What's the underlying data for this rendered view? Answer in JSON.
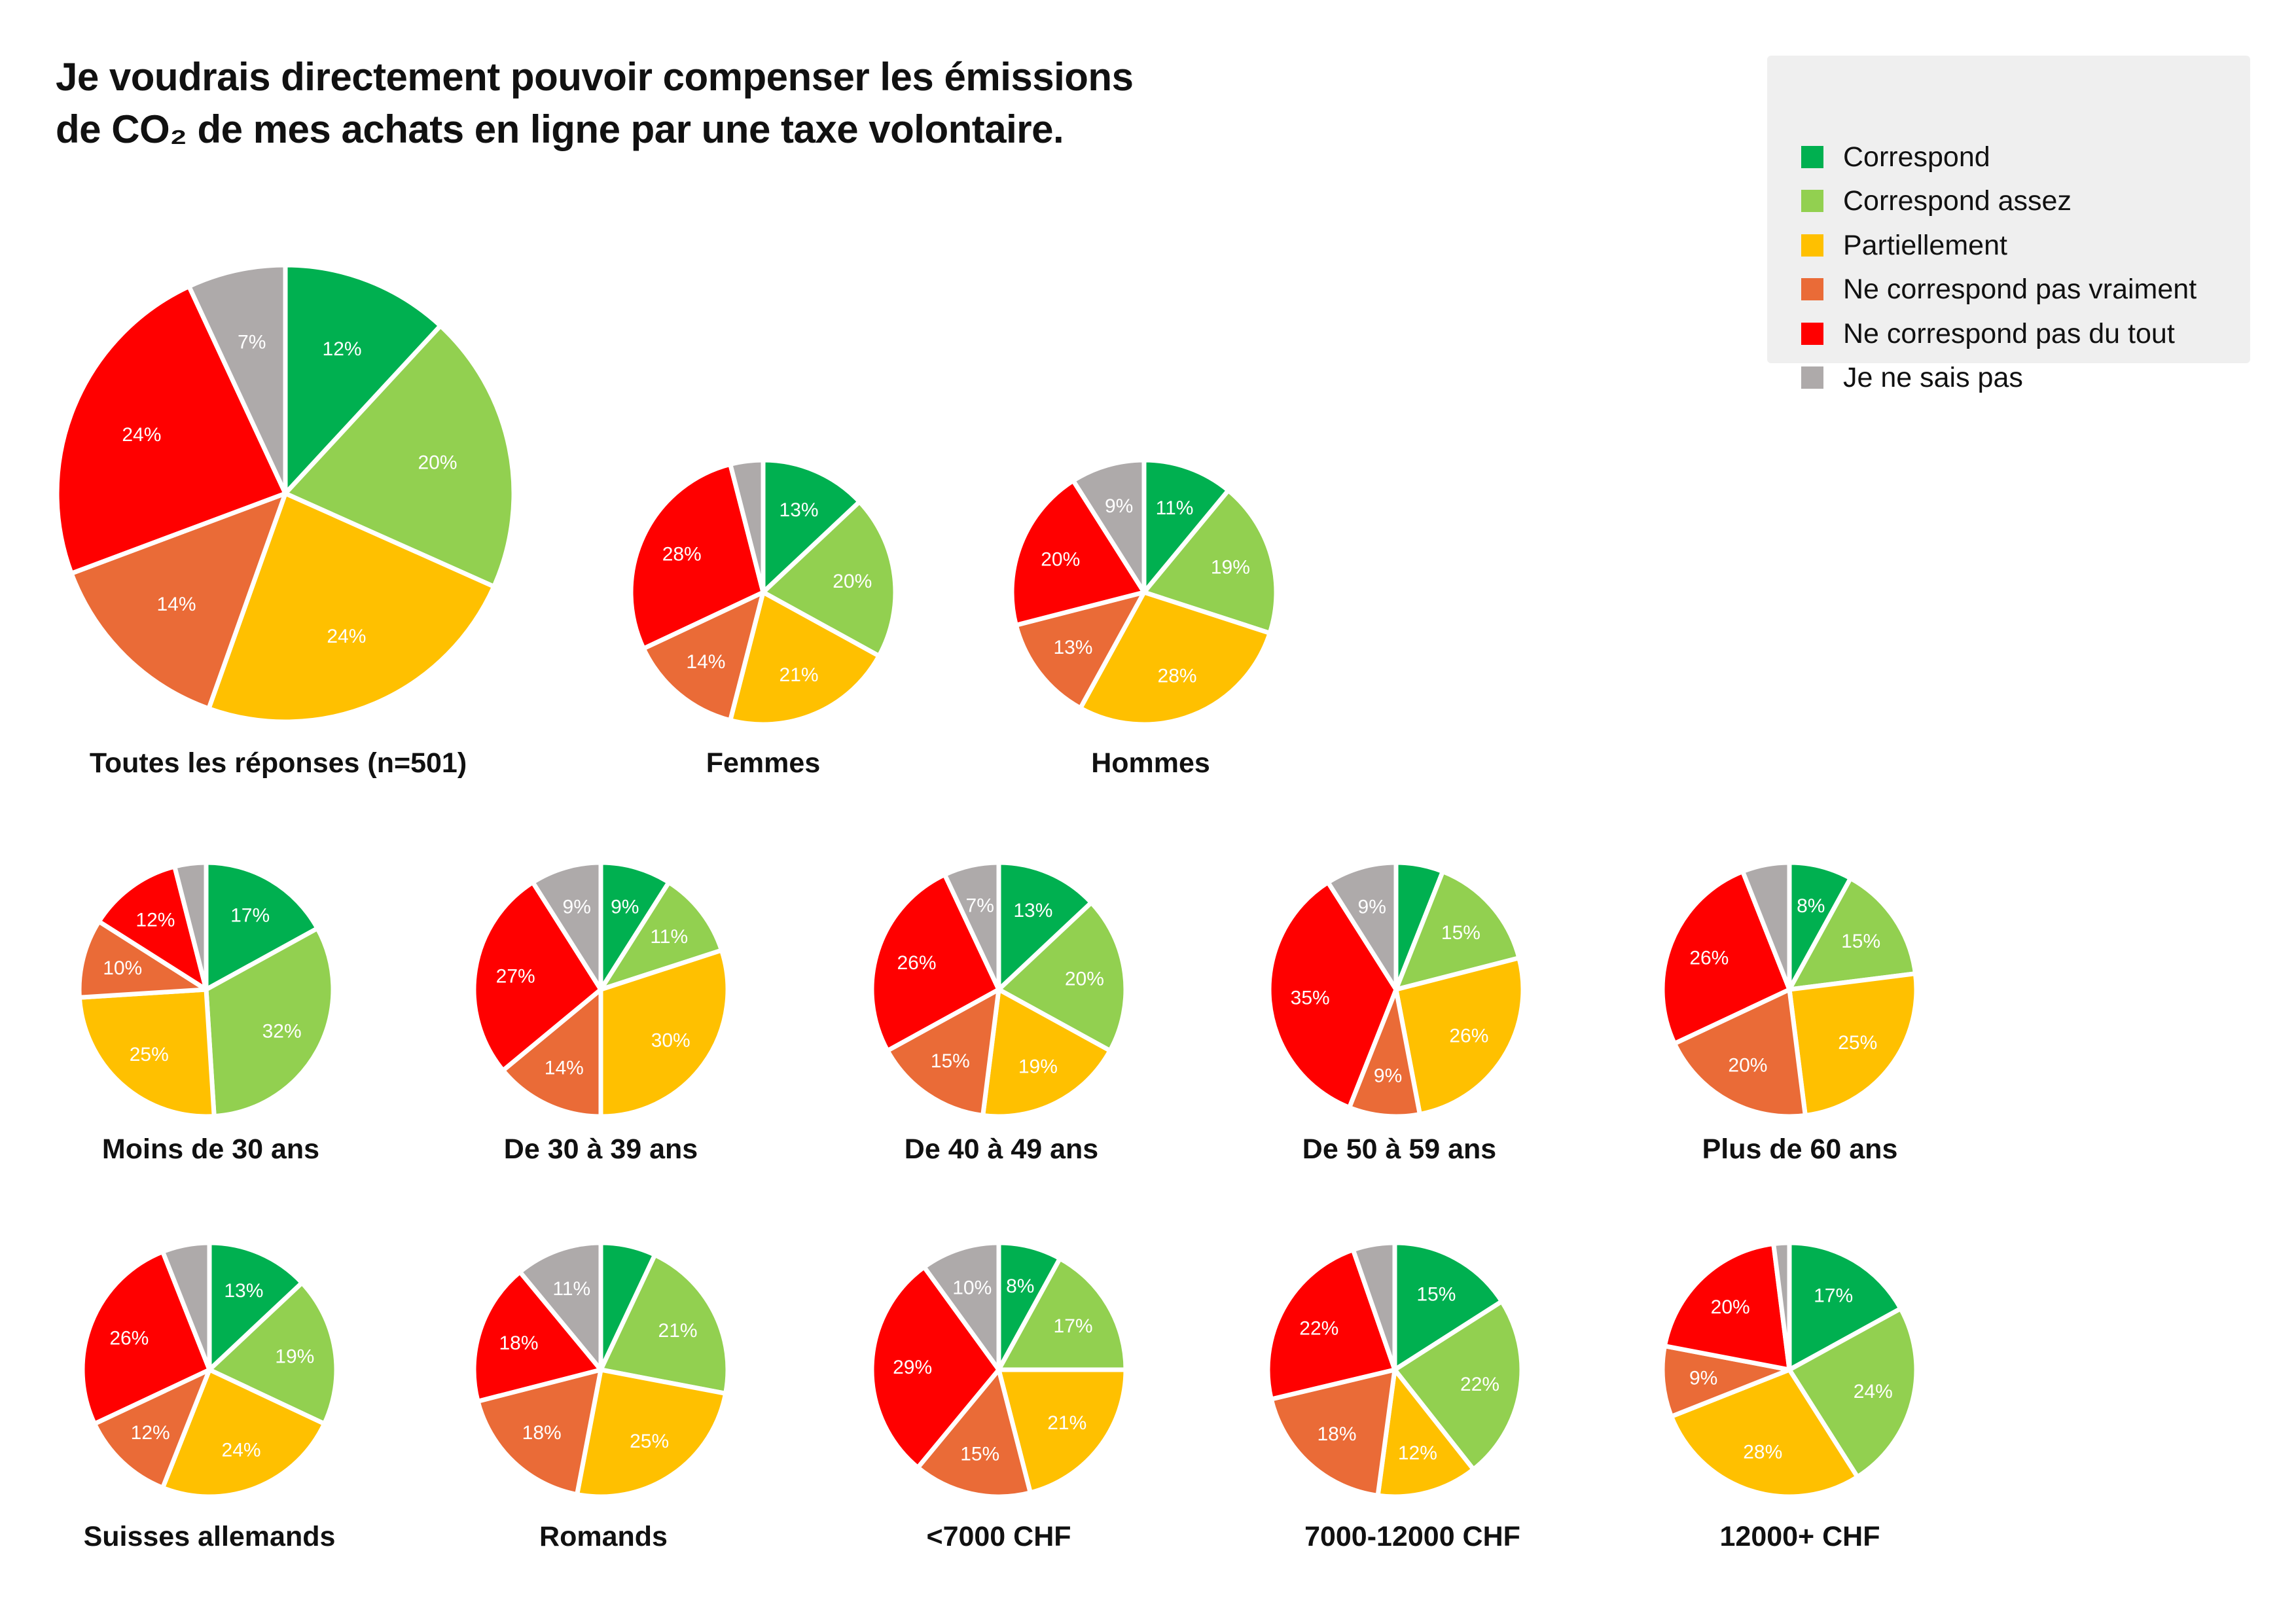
{
  "title_line1": "Je voudrais directement pouvoir compenser les émissions",
  "title_line2": "de CO₂ de mes achats en ligne par une taxe volontaire.",
  "chart_data": {
    "type": "pie",
    "title": "Je voudrais directement pouvoir compenser les émissions de CO₂ de mes achats en ligne par une taxe volontaire.",
    "legend_position": "top-right",
    "start_angle": "12 o'clock, clockwise",
    "categories": [
      "Correspond",
      "Correspond assez",
      "Partiellement",
      "Ne correspond pas vraiment",
      "Ne correspond pas du tout",
      "Je ne sais pas"
    ],
    "colors": [
      "#00b050",
      "#92d050",
      "#ffc000",
      "#ea6b37",
      "#ff0000",
      "#aeaaaa"
    ],
    "pies": [
      {
        "name": "Toutes les réponses (n=501)",
        "values": [
          12,
          20,
          24,
          14,
          24,
          7
        ],
        "labels": [
          "12%",
          "20%",
          "24%",
          "14%",
          "24%",
          "7%"
        ]
      },
      {
        "name": "Femmes",
        "values": [
          13,
          20,
          21,
          14,
          28,
          4
        ],
        "labels": [
          "13%",
          "20%",
          "21%",
          "14%",
          "28%",
          null
        ]
      },
      {
        "name": "Hommes",
        "values": [
          11,
          19,
          28,
          13,
          20,
          9
        ],
        "labels": [
          "11%",
          "19%",
          "28%",
          "13%",
          "20%",
          "9%"
        ]
      },
      {
        "name": "Moins de 30 ans",
        "values": [
          17,
          32,
          25,
          10,
          12,
          4
        ],
        "labels": [
          "17%",
          "32%",
          "25%",
          "10%",
          "12%",
          null
        ]
      },
      {
        "name": "De 30 à 39 ans",
        "values": [
          9,
          11,
          30,
          14,
          27,
          9
        ],
        "labels": [
          "9%",
          "11%",
          "30%",
          "14%",
          "27%",
          "9%"
        ]
      },
      {
        "name": "De 40 à 49 ans",
        "values": [
          13,
          20,
          19,
          15,
          26,
          7
        ],
        "labels": [
          "13%",
          "20%",
          "19%",
          "15%",
          "26%",
          "7%"
        ]
      },
      {
        "name": "De 50 à 59 ans",
        "values": [
          6,
          15,
          26,
          9,
          35,
          9
        ],
        "labels": [
          null,
          "15%",
          "26%",
          "9%",
          "35%",
          "9%"
        ]
      },
      {
        "name": "Plus de 60 ans",
        "values": [
          8,
          15,
          25,
          20,
          26,
          6
        ],
        "labels": [
          "8%",
          "15%",
          "25%",
          "20%",
          "26%",
          null
        ]
      },
      {
        "name": "Suisses allemands",
        "values": [
          13,
          19,
          24,
          12,
          26,
          6
        ],
        "labels": [
          "13%",
          "19%",
          "24%",
          "12%",
          "26%",
          null
        ]
      },
      {
        "name": "Romands",
        "values": [
          7,
          21,
          25,
          18,
          18,
          11
        ],
        "labels": [
          null,
          "21%",
          "25%",
          "18%",
          "18%",
          "11%"
        ]
      },
      {
        "name": "<7000 CHF",
        "values": [
          8,
          17,
          21,
          15,
          29,
          10
        ],
        "labels": [
          "8%",
          "17%",
          "21%",
          "15%",
          "29%",
          "10%"
        ]
      },
      {
        "name": "7000-12000 CHF",
        "values": [
          15,
          22,
          12,
          18,
          22,
          5
        ],
        "labels": [
          "15%",
          "22%",
          "12%",
          "18%",
          "22%",
          null
        ]
      },
      {
        "name": "12000+ CHF",
        "values": [
          17,
          24,
          28,
          9,
          20,
          2
        ],
        "labels": [
          "17%",
          "24%",
          "28%",
          "9%",
          "20%",
          null
        ]
      }
    ]
  }
}
